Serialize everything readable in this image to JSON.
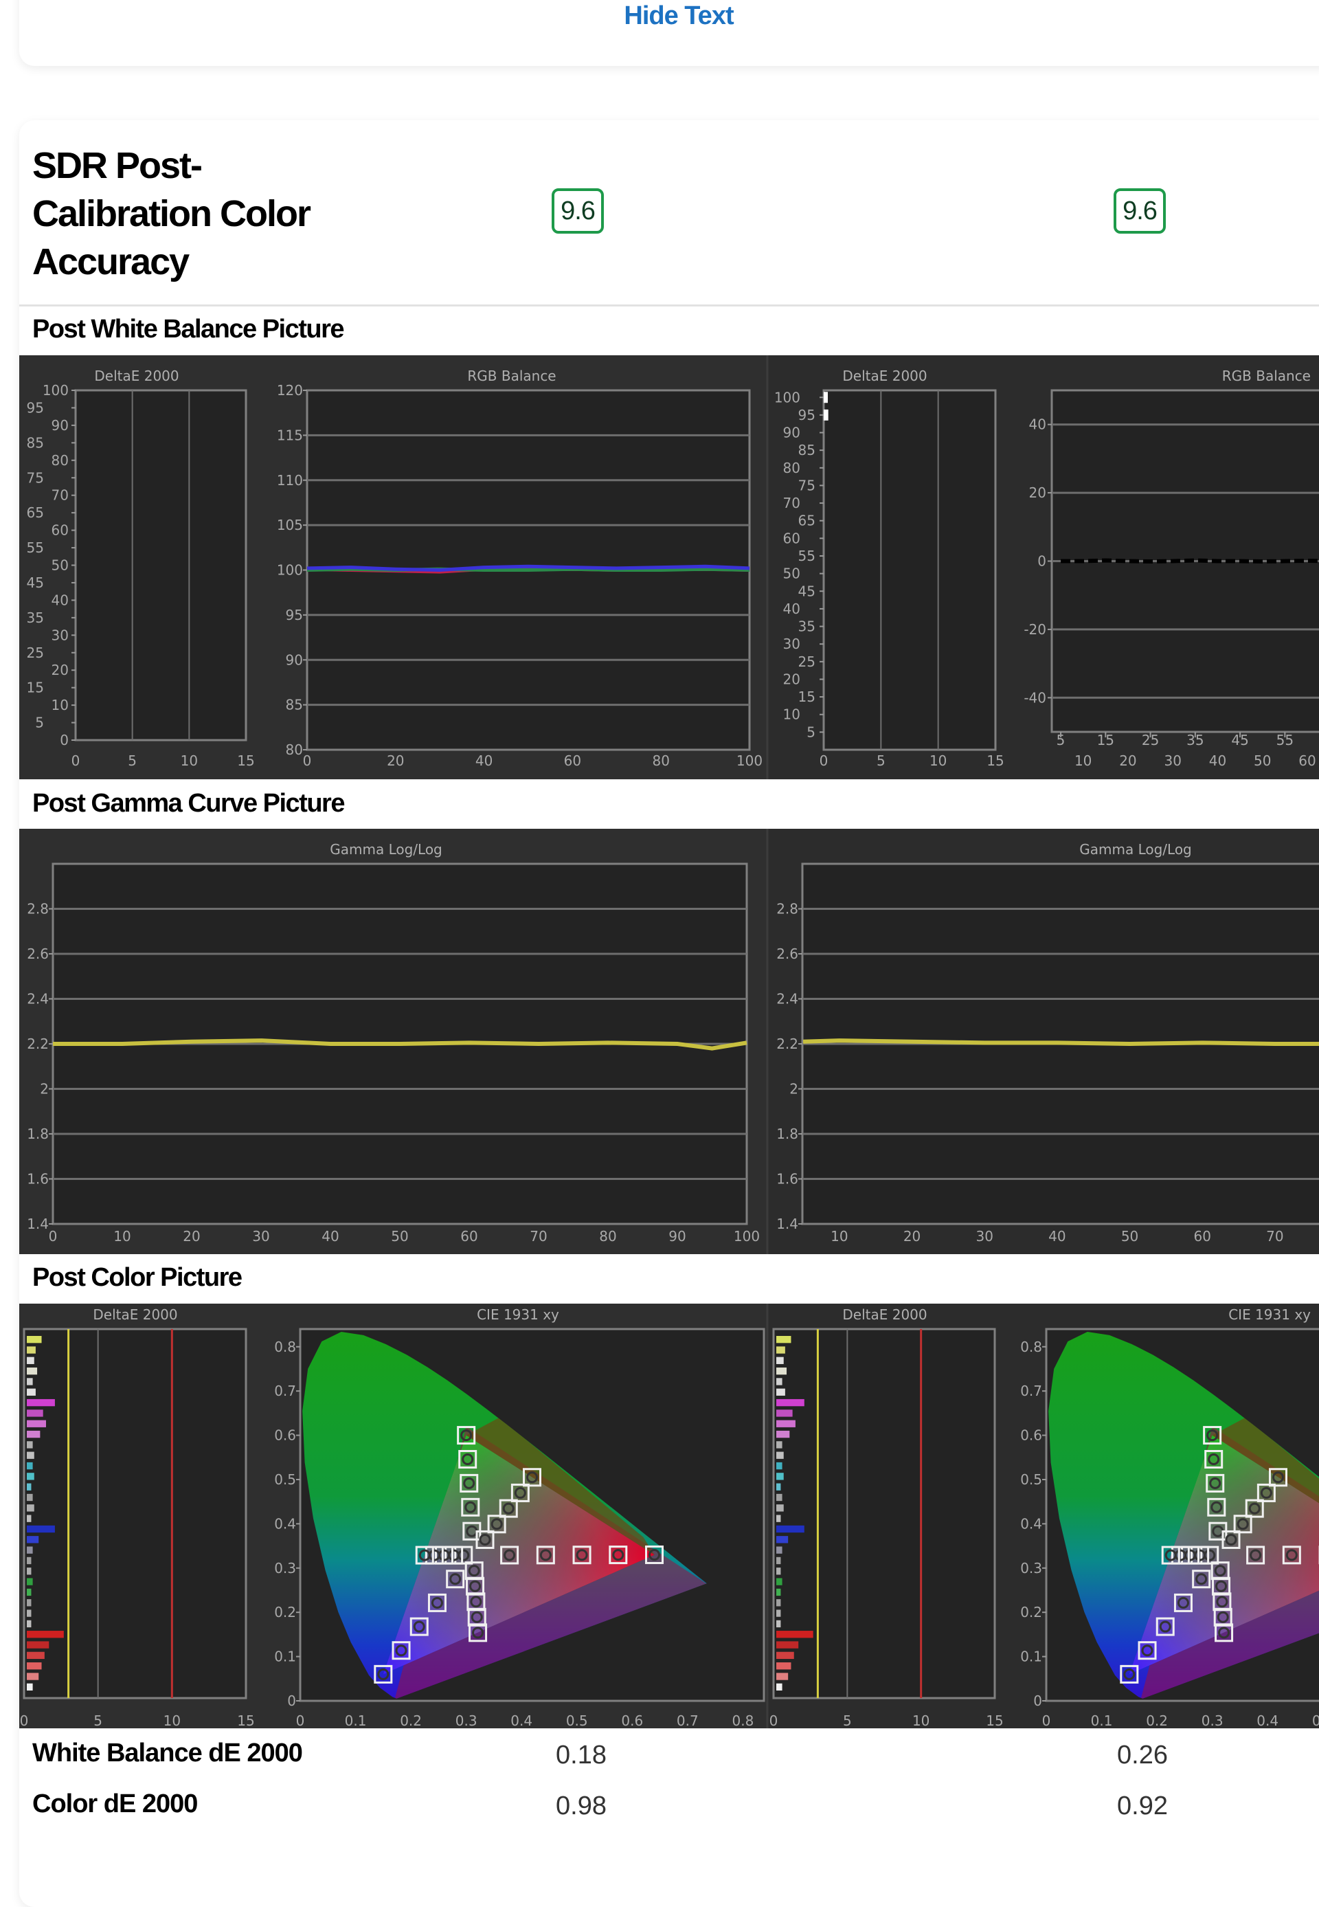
{
  "header": {
    "hide_text": "Hide Text"
  },
  "section": {
    "title": "SDR Post-Calibration Color Accuracy",
    "scores": [
      "9.6",
      "9.6"
    ]
  },
  "subsections": {
    "wb": "Post White Balance Picture",
    "gamma": "Post Gamma Curve Picture",
    "color": "Post Color Picture"
  },
  "results": [
    {
      "label": "White Balance dE 2000",
      "values": [
        "0.18",
        "0.26"
      ]
    },
    {
      "label": "Color dE 2000",
      "values": [
        "0.98",
        "0.92"
      ]
    }
  ],
  "colors": {
    "link": "#1d72c2",
    "badge_border": "#1e9a4a",
    "panel_bg": "#2f2f2f",
    "plot_bg": "#232323",
    "grid": "#7a7a7a"
  },
  "charts": {
    "wb_delta": {
      "title": "DeltaE 2000",
      "xticks": [
        0,
        5,
        10,
        15
      ],
      "yticks_major": [
        0,
        10,
        20,
        30,
        40,
        50,
        60,
        70,
        80,
        90,
        100
      ],
      "yticks_minor": [
        5,
        15,
        25,
        35,
        45,
        55,
        65,
        75,
        85,
        95
      ]
    },
    "wb_rgb_left": {
      "title": "RGB Balance",
      "xticks": [
        0,
        20,
        40,
        60,
        80,
        100
      ],
      "yticks": [
        80,
        85,
        90,
        95,
        100,
        105,
        110,
        115,
        120
      ],
      "series": [
        {
          "name": "Red",
          "color": "#c0204a",
          "values": [
            100.1,
            100.0,
            99.9,
            99.8,
            100.1,
            100.2,
            100.1,
            100.0,
            100.2,
            100.1,
            100.0
          ]
        },
        {
          "name": "Green",
          "color": "#2a8a4a",
          "values": [
            100.0,
            100.1,
            100.0,
            100.1,
            100.0,
            100.0,
            100.1,
            100.0,
            100.0,
            100.1,
            100.0
          ]
        },
        {
          "name": "Blue",
          "color": "#3a32d8",
          "values": [
            100.2,
            100.3,
            100.1,
            100.0,
            100.3,
            100.4,
            100.3,
            100.2,
            100.3,
            100.4,
            100.2
          ]
        }
      ]
    },
    "wb_delta_right": {
      "title": "DeltaE 2000",
      "xticks": [
        0,
        5,
        10,
        15
      ],
      "yticks": [
        5,
        10,
        15,
        20,
        25,
        30,
        35,
        40,
        45,
        50,
        55,
        60,
        65,
        70,
        75,
        80,
        85,
        90,
        95,
        100
      ],
      "bars": [
        {
          "level": 95,
          "value": 0.4
        },
        {
          "level": 100,
          "value": 0.15
        }
      ]
    },
    "wb_rgb_right": {
      "title": "RGB Balance",
      "yticks": [
        -40,
        -20,
        0,
        20,
        40
      ],
      "xticks_top": [
        5,
        15,
        25,
        35,
        45,
        55
      ],
      "xticks_bottom": [
        10,
        20,
        30,
        40,
        50,
        60
      ],
      "series": [
        {
          "name": "Balance",
          "color": "#000000",
          "x": [
            5,
            10,
            15,
            20,
            25,
            30,
            35,
            40,
            45,
            50,
            55,
            60,
            65
          ],
          "values": [
            0,
            0,
            0.2,
            0,
            -0.1,
            0,
            0.2,
            0,
            0,
            -0.1,
            0,
            0.1,
            0
          ]
        }
      ]
    },
    "gamma_left": {
      "title": "Gamma Log/Log",
      "xticks": [
        0,
        10,
        20,
        30,
        40,
        50,
        60,
        70,
        80,
        90,
        100
      ],
      "yticks": [
        1.4,
        1.6,
        1.8,
        2,
        2.2,
        2.4,
        2.6,
        2.8
      ],
      "series": [
        {
          "name": "Gamma",
          "color": "#c8c040",
          "x": [
            0,
            10,
            20,
            30,
            40,
            50,
            60,
            70,
            80,
            90,
            95,
            100
          ],
          "values": [
            2.2,
            2.2,
            2.21,
            2.215,
            2.2,
            2.2,
            2.205,
            2.2,
            2.205,
            2.2,
            2.18,
            2.205
          ]
        }
      ]
    },
    "gamma_right": {
      "title": "Gamma Log/Log",
      "xticks": [
        10,
        20,
        30,
        40,
        50,
        60,
        70
      ],
      "yticks": [
        1.4,
        1.6,
        1.8,
        2,
        2.2,
        2.4,
        2.6,
        2.8
      ],
      "series": [
        {
          "name": "Gamma",
          "color": "#c8c040",
          "x": [
            5,
            10,
            20,
            30,
            40,
            50,
            60,
            70,
            78
          ],
          "values": [
            2.21,
            2.215,
            2.21,
            2.205,
            2.205,
            2.2,
            2.205,
            2.2,
            2.2
          ]
        }
      ]
    },
    "color_delta": {
      "title": "DeltaE 2000",
      "xticks": [
        0,
        5,
        10,
        15
      ],
      "ref_lines": [
        {
          "value": 3,
          "color": "#d8d040"
        },
        {
          "value": 10,
          "color": "#c03030"
        }
      ],
      "bars": [
        {
          "color": "#d8e060",
          "value": 1.0
        },
        {
          "color": "#d8d870",
          "value": 0.6
        },
        {
          "color": "#e0e0e0",
          "value": 0.5
        },
        {
          "color": "#e0e0d0",
          "value": 0.7
        },
        {
          "color": "#d0d0d0",
          "value": 0.4
        },
        {
          "color": "#e0e0e0",
          "value": 0.6
        },
        {
          "color": "#d040d0",
          "value": 1.9
        },
        {
          "color": "#c050c0",
          "value": 1.1
        },
        {
          "color": "#d070d0",
          "value": 1.3
        },
        {
          "color": "#d080d0",
          "value": 0.9
        },
        {
          "color": "#b0b0b0",
          "value": 0.4
        },
        {
          "color": "#c0c0c0",
          "value": 0.5
        },
        {
          "color": "#40b0c0",
          "value": 0.4
        },
        {
          "color": "#50c0c8",
          "value": 0.5
        },
        {
          "color": "#60c0d0",
          "value": 0.3
        },
        {
          "color": "#a0a0a0",
          "value": 0.4
        },
        {
          "color": "#b0b0b0",
          "value": 0.5
        },
        {
          "color": "#c0c0c0",
          "value": 0.3
        },
        {
          "color": "#2030c0",
          "value": 1.9
        },
        {
          "color": "#3040d0",
          "value": 0.8
        },
        {
          "color": "#9090a0",
          "value": 0.4
        },
        {
          "color": "#a0a0a0",
          "value": 0.3
        },
        {
          "color": "#b0b0b0",
          "value": 0.3
        },
        {
          "color": "#30a040",
          "value": 0.4
        },
        {
          "color": "#40b050",
          "value": 0.3
        },
        {
          "color": "#a0a0a0",
          "value": 0.3
        },
        {
          "color": "#b0b0b0",
          "value": 0.3
        },
        {
          "color": "#c0c0c0",
          "value": 0.3
        },
        {
          "color": "#d02020",
          "value": 2.5
        },
        {
          "color": "#c02828",
          "value": 1.5
        },
        {
          "color": "#d04040",
          "value": 1.2
        },
        {
          "color": "#e06060",
          "value": 1.0
        },
        {
          "color": "#e08080",
          "value": 0.8
        },
        {
          "color": "#f0f0f0",
          "value": 0.4
        }
      ]
    },
    "cie": {
      "title": "CIE 1931 xy",
      "xticks": [
        0,
        0.1,
        0.2,
        0.3,
        0.4,
        0.5,
        0.6,
        0.7,
        0.8
      ],
      "yticks": [
        0,
        0.1,
        0.2,
        0.3,
        0.4,
        0.5,
        0.6,
        0.7,
        0.8
      ],
      "white": [
        0.3127,
        0.329
      ],
      "primaries": {
        "red": [
          0.64,
          0.33
        ],
        "green": [
          0.3,
          0.6
        ],
        "blue": [
          0.15,
          0.06
        ]
      },
      "secondaries": {
        "cyan": [
          0.225,
          0.329
        ],
        "magenta": [
          0.321,
          0.154
        ],
        "yellow": [
          0.419,
          0.505
        ]
      },
      "saturation_steps": [
        0.2,
        0.4,
        0.6,
        0.8,
        1.0
      ]
    }
  }
}
